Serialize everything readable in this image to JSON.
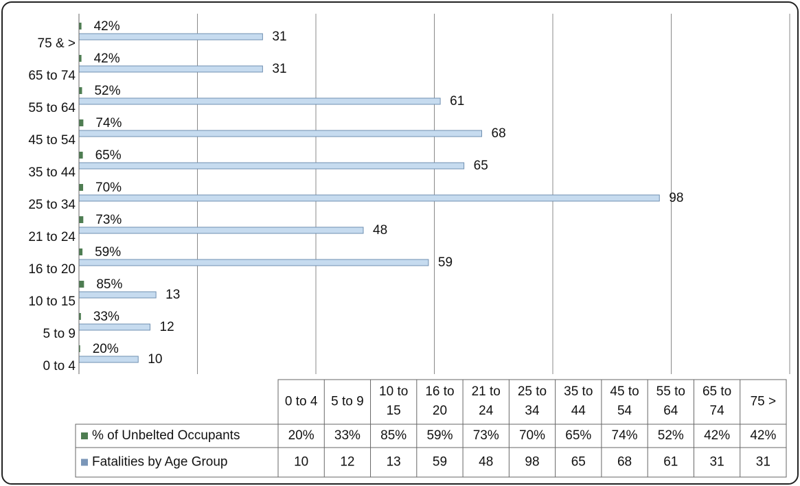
{
  "chart_data": {
    "type": "bar",
    "orientation": "horizontal",
    "categories": [
      "0 to 4",
      "5 to 9",
      "10 to 15",
      "16 to 20",
      "21 to 24",
      "25 to 34",
      "35 to 44",
      "45 to 54",
      "55 to 64",
      "65 to 74",
      "75 & >"
    ],
    "table_categories": [
      "0 to 4",
      "5 to 9",
      "10 to 15",
      "16 to 20",
      "21 to 24",
      "25 to 34",
      "35 to 44",
      "45 to 54",
      "55 to 64",
      "65 to 74",
      "75 >"
    ],
    "series": [
      {
        "name": "% of Unbelted Occupants",
        "color": "#4e7d52",
        "values": [
          0.2,
          0.33,
          0.85,
          0.59,
          0.73,
          0.7,
          0.65,
          0.74,
          0.52,
          0.42,
          0.42
        ],
        "value_labels": [
          "20%",
          "33%",
          "85%",
          "59%",
          "73%",
          "70%",
          "65%",
          "74%",
          "52%",
          "42%",
          "42%"
        ]
      },
      {
        "name": "Fatalities by Age Group",
        "color": "#c6dbef",
        "values": [
          10,
          12,
          13,
          59,
          48,
          98,
          65,
          68,
          61,
          31,
          31
        ]
      }
    ],
    "xlim": [
      0,
      120
    ],
    "xticks": [
      0,
      20,
      40,
      60,
      80,
      100,
      120
    ],
    "grid": true
  }
}
